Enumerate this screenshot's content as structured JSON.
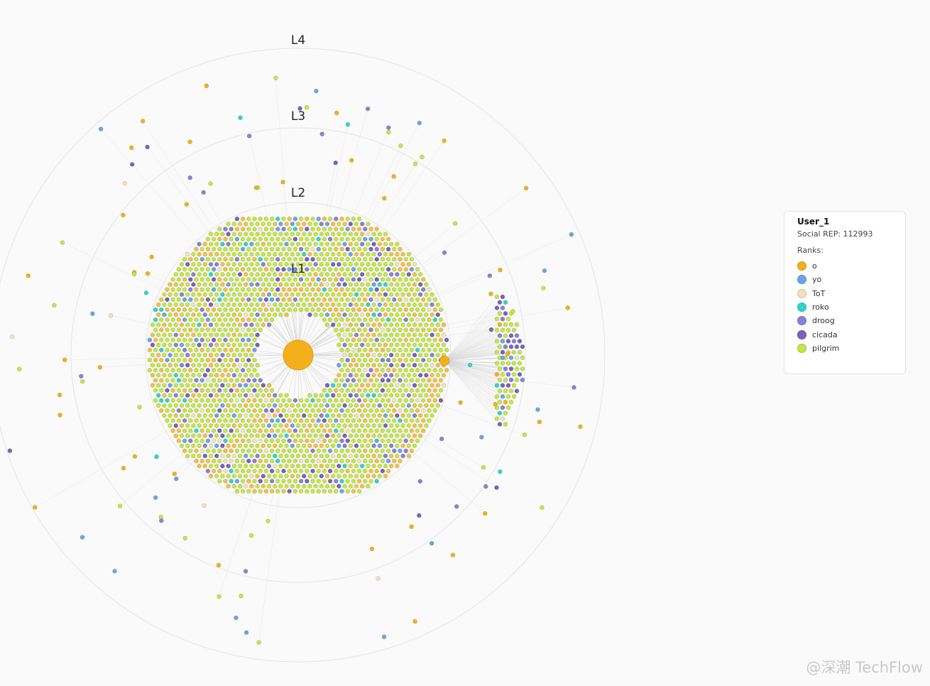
{
  "levels": [
    "L1",
    "L2",
    "L3",
    "L4"
  ],
  "legend": {
    "title": "User_1",
    "subtitle": "Social REP: 112993",
    "ranks_label": "Ranks:",
    "items": [
      {
        "name": "o",
        "color": "#f4b01c"
      },
      {
        "name": "yo",
        "color": "#6aa6e6"
      },
      {
        "name": "ToT",
        "color": "#efe2bf"
      },
      {
        "name": "roko",
        "color": "#2fd6c6"
      },
      {
        "name": "droog",
        "color": "#8a80d8"
      },
      {
        "name": "cicada",
        "color": "#7862bf"
      },
      {
        "name": "pilgrim",
        "color": "#c4e646"
      }
    ]
  },
  "watermark": "@深潮 TechFlow"
}
